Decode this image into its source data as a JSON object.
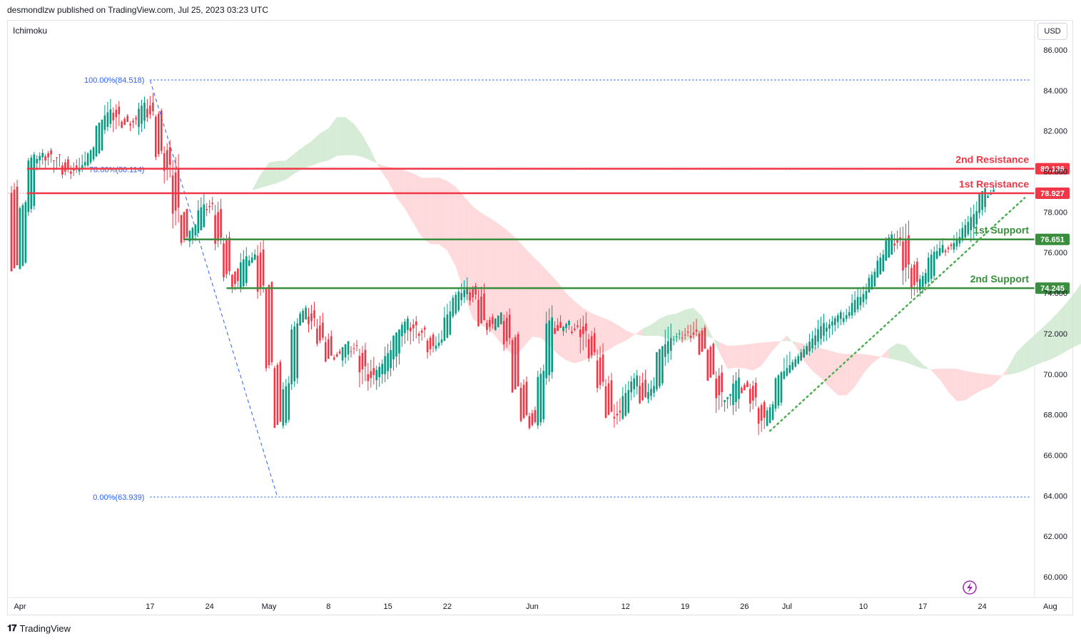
{
  "header": {
    "publisher_line": "desmondlzw published on TradingView.com, Jul 25, 2023 03:23 UTC"
  },
  "indicator": {
    "name": "Ichimoku"
  },
  "currency": "USD",
  "footer": {
    "brand": "TradingView"
  },
  "colors": {
    "resistance": "#f23645",
    "support": "#388e3c",
    "up": "#089981",
    "down": "#f23645",
    "fib": "#2962ff",
    "trend": "#4caf50",
    "cloud_bull": "#c8e6c9",
    "cloud_bear": "#ffcdd2"
  },
  "chart_data": {
    "type": "candlestick",
    "ylim": [
      59.0,
      87.0
    ],
    "y_ticks": [
      "86.000",
      "84.000",
      "82.000",
      "80.000",
      "78.000",
      "76.000",
      "74.000",
      "72.000",
      "70.000",
      "68.000",
      "66.000",
      "64.000",
      "62.000",
      "60.000"
    ],
    "x_ticks": [
      {
        "label": "Apr",
        "day": 0
      },
      {
        "label": "17",
        "day": 16
      },
      {
        "label": "24",
        "day": 23
      },
      {
        "label": "May",
        "day": 30
      },
      {
        "label": "8",
        "day": 37
      },
      {
        "label": "15",
        "day": 44
      },
      {
        "label": "22",
        "day": 51
      },
      {
        "label": "Jun",
        "day": 61
      },
      {
        "label": "12",
        "day": 72
      },
      {
        "label": "19",
        "day": 79
      },
      {
        "label": "26",
        "day": 86
      },
      {
        "label": "Jul",
        "day": 91
      },
      {
        "label": "10",
        "day": 100
      },
      {
        "label": "17",
        "day": 107
      },
      {
        "label": "24",
        "day": 114
      },
      {
        "label": "Aug",
        "day": 122
      }
    ],
    "levels": [
      {
        "name": "2nd Resistance",
        "value": 80.136,
        "label": "80.136",
        "kind": "resistance",
        "from_day": 1.5
      },
      {
        "name": "1st Resistance",
        "value": 78.927,
        "label": "78.927",
        "kind": "resistance",
        "from_day": 1.5
      },
      {
        "name": "1st Support",
        "value": 76.651,
        "label": "76.651",
        "kind": "support",
        "from_day": 20
      },
      {
        "name": "2nd Support",
        "value": 74.245,
        "label": "74.245",
        "kind": "support",
        "from_day": 25
      }
    ],
    "fibonacci": [
      {
        "label": "100.00%(84.518)",
        "value": 84.518
      },
      {
        "label": "78.60%(80.114)",
        "value": 80.114
      },
      {
        "label": "0.00%(63.939)",
        "value": 63.939
      }
    ],
    "price_path": [
      [
        0,
        74.5
      ],
      [
        1,
        76.2
      ],
      [
        2,
        80.1
      ],
      [
        3,
        81.0
      ],
      [
        5,
        80.6
      ],
      [
        7,
        80.0
      ],
      [
        9,
        80.6
      ],
      [
        10,
        81.2
      ],
      [
        11,
        83.2
      ],
      [
        12,
        82.9
      ],
      [
        13,
        82.3
      ],
      [
        14,
        82.7
      ],
      [
        15,
        82.0
      ],
      [
        16,
        84.5
      ],
      [
        17,
        81.2
      ],
      [
        18,
        80.9
      ],
      [
        19,
        79.0
      ],
      [
        20,
        77.0
      ],
      [
        21,
        76.4
      ],
      [
        22,
        77.8
      ],
      [
        23,
        78.8
      ],
      [
        24,
        77.2
      ],
      [
        25,
        76.0
      ],
      [
        26,
        74.1
      ],
      [
        27,
        74.6
      ],
      [
        28,
        76.4
      ],
      [
        29,
        75.6
      ],
      [
        30,
        73.2
      ],
      [
        31,
        67.7
      ],
      [
        32,
        67.5
      ],
      [
        33,
        71.8
      ],
      [
        34,
        73.3
      ],
      [
        36,
        72.1
      ],
      [
        38,
        70.6
      ],
      [
        40,
        71.5
      ],
      [
        42,
        69.7
      ],
      [
        44,
        70.3
      ],
      [
        46,
        72.6
      ],
      [
        48,
        72.0
      ],
      [
        50,
        71.2
      ],
      [
        52,
        73.6
      ],
      [
        54,
        74.4
      ],
      [
        56,
        72.1
      ],
      [
        58,
        73.0
      ],
      [
        60,
        68.3
      ],
      [
        62,
        67.4
      ],
      [
        63,
        72.5
      ],
      [
        65,
        72.2
      ],
      [
        67,
        72.4
      ],
      [
        69,
        70.3
      ],
      [
        71,
        67.3
      ],
      [
        73,
        69.9
      ],
      [
        75,
        68.6
      ],
      [
        77,
        71.8
      ],
      [
        79,
        72.0
      ],
      [
        81,
        72.2
      ],
      [
        82,
        70.5
      ],
      [
        84,
        68.2
      ],
      [
        86,
        69.9
      ],
      [
        88,
        68.0
      ],
      [
        89,
        67.2
      ],
      [
        90,
        69.7
      ],
      [
        92,
        70.6
      ],
      [
        94,
        71.5
      ],
      [
        96,
        72.5
      ],
      [
        98,
        72.8
      ],
      [
        100,
        73.8
      ],
      [
        102,
        75.3
      ],
      [
        103,
        76.2
      ],
      [
        104,
        77.0
      ],
      [
        105,
        76.4
      ],
      [
        106,
        74.4
      ],
      [
        107,
        74.2
      ],
      [
        108,
        75.2
      ],
      [
        109,
        76.5
      ],
      [
        110,
        76.0
      ],
      [
        111,
        76.6
      ],
      [
        112,
        76.9
      ],
      [
        113,
        77.6
      ],
      [
        114,
        78.6
      ],
      [
        115,
        79.1
      ]
    ],
    "fib_swing": {
      "from": [
        16,
        84.5
      ],
      "to": [
        31,
        63.939
      ]
    },
    "trendline": {
      "from": [
        89,
        67.2
      ],
      "to": [
        119,
        78.7
      ]
    }
  }
}
